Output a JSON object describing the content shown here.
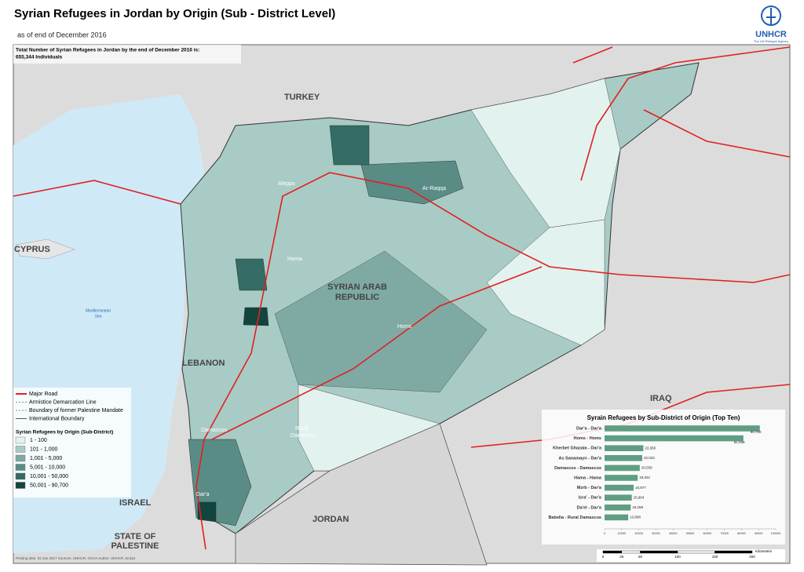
{
  "header": {
    "title": "Syrian Refugees in Jordan by Origin (Sub - District Level)",
    "subtitle": "as of end of December 2016",
    "total_note": "Total Number of Syrian Refugees in Jordan by the end of December 2016 is:",
    "total_value": "655,344 Individuals",
    "logo": "UNHCR",
    "logo_sub": "The UN Refugee Agency"
  },
  "map_labels": {
    "turkey": "TURKEY",
    "cyprus": "CYPRUS",
    "lebanon": "LEBANON",
    "syria": [
      "SYRIAN ARAB",
      "REPUBLIC"
    ],
    "iraq": "IRAQ",
    "jordan": "JORDAN",
    "israel": "ISRAEL",
    "palestine": [
      "STATE OF",
      "PALESTINE"
    ],
    "sea": [
      "Mediterranean",
      "Sea"
    ],
    "aleppo": "Aleppo",
    "raqqa": "Ar-Raqqa",
    "hama": "Hama",
    "homs": "Homs",
    "rural_damascus": [
      "Rural",
      "Damascus"
    ],
    "damascus": "Damascus",
    "daraa": "Dar'a"
  },
  "legend": {
    "lines": [
      {
        "label": "Major Road",
        "color": "#e02020"
      },
      {
        "label": "Armistice Demarcation Line",
        "color": "#888888"
      },
      {
        "label": "Boundary of former Palestine Mandate",
        "color": "#888888"
      },
      {
        "label": "International Boundary",
        "color": "#555555"
      }
    ],
    "title": "Syrian Refugees by Origin (Sub-District)",
    "classes": [
      {
        "label": "1 - 100",
        "color": "#e2f2ef"
      },
      {
        "label": "101 - 1,000",
        "color": "#a9cbc6"
      },
      {
        "label": "1,001 - 5,000",
        "color": "#7faaa4"
      },
      {
        "label": "5,001 - 10,000",
        "color": "#5a8c86"
      },
      {
        "label": "10,001 - 50,000",
        "color": "#336d65"
      },
      {
        "label": "50,001 - 90,700",
        "color": "#12453d"
      }
    ]
  },
  "chart_data": {
    "type": "bar",
    "orientation": "horizontal",
    "title": "Syrain Refugees by Sub-District of Origin (Top Ten)",
    "categories": [
      "Dar'a - Dar'a",
      "Homs - Homs",
      "Kherbet Ghazala - Dar'a",
      "As Sanamayn - Dar'a",
      "Damascus - Damascus",
      "Hama - Hama",
      "Mzrb - Dar'a",
      "Izra' - Dar'a",
      "Da'el - Dar'a",
      "Babella - Rural Damascus"
    ],
    "values": [
      90700,
      81098,
      22650,
      22023,
      20559,
      19322,
      16977,
      15904,
      15258,
      13808
    ],
    "value_labels": [
      "90,700",
      "81,098",
      "22,650",
      "22,023",
      "20,559",
      "19,322",
      "16,977",
      "15,904",
      "15,258",
      "13,808"
    ],
    "color": "#5f9e82",
    "xlim": [
      0,
      100000
    ],
    "xticks": [
      0,
      10000,
      20000,
      30000,
      40000,
      50000,
      60000,
      70000,
      80000,
      90000,
      100000
    ]
  },
  "scale": {
    "ticks": [
      0,
      25,
      50,
      100,
      150,
      200
    ],
    "unit": "Kilometers"
  },
  "footer": "Printing date: 02 Jan 2017    Sources: UNHCR, OCHA    Author: UNHCR Jordan"
}
